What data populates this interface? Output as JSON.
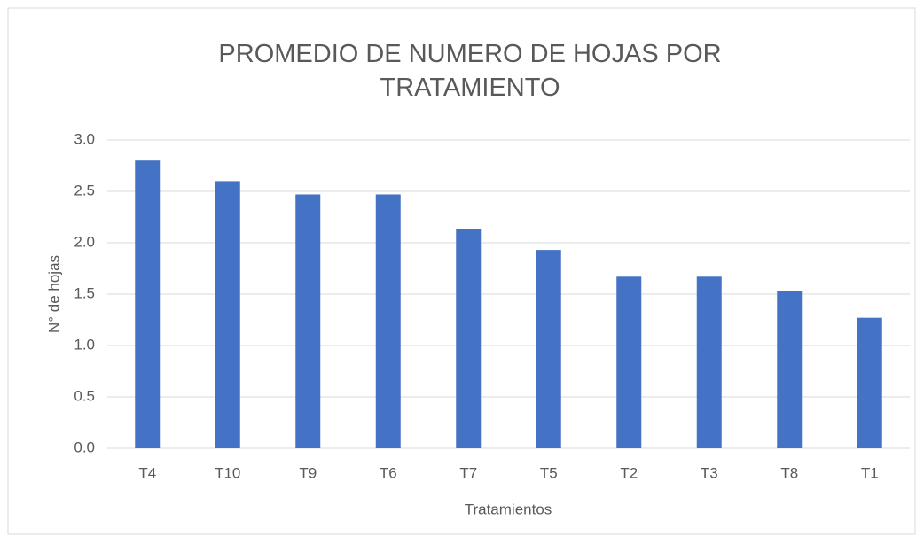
{
  "chart_data": {
    "type": "bar",
    "title": "PROMEDIO DE NUMERO DE HOJAS POR TRATAMIENTO",
    "x_label": "Tratamientos",
    "y_label": "N° de hojas",
    "categories": [
      "T4",
      "T10",
      "T9",
      "T6",
      "T7",
      "T5",
      "T2",
      "T3",
      "T8",
      "T1"
    ],
    "values": [
      2.8,
      2.6,
      2.47,
      2.47,
      2.13,
      1.93,
      1.67,
      1.67,
      1.53,
      1.27
    ],
    "color": "#4472c4",
    "ylim": [
      0,
      3
    ],
    "yticks": [
      {
        "value": 0,
        "label": "0.0"
      },
      0.5,
      {
        "value": 1,
        "label": "1.0"
      },
      1.5,
      {
        "value": 2,
        "label": "2.0"
      },
      2.5,
      {
        "value": 3,
        "label": "3.0"
      }
    ],
    "grid": true
  }
}
